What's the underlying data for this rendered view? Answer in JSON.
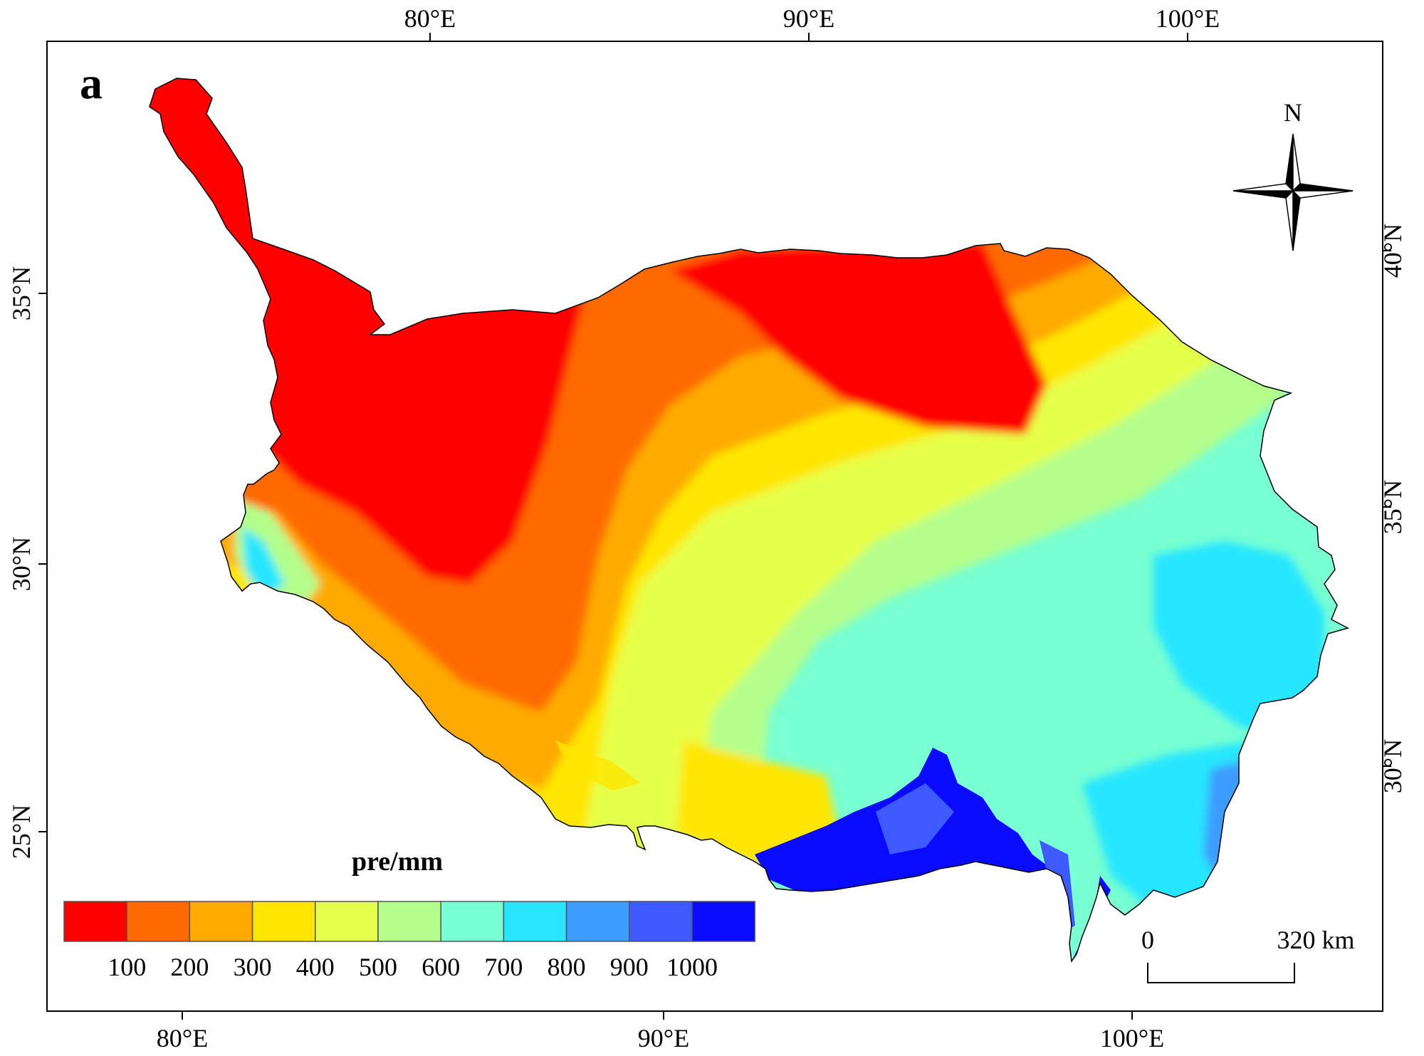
{
  "panel_label": "a",
  "axes": {
    "top_ticks": [
      "80°E",
      "90°E",
      "100°E"
    ],
    "bottom_ticks": [
      "80°E",
      "90°E",
      "100°E"
    ],
    "left_ticks": [
      "35°N",
      "30°N",
      "25°N"
    ],
    "right_ticks": [
      "40°N",
      "35°N",
      "30°N"
    ]
  },
  "legend": {
    "title": "pre/mm",
    "colors": [
      "#ff0000",
      "#ff6a00",
      "#ffaa00",
      "#ffe600",
      "#e6ff4a",
      "#b4ff8c",
      "#78ffd2",
      "#28e6ff",
      "#3c9cff",
      "#3c5aff",
      "#0a0aff"
    ],
    "labels": [
      "100",
      "200",
      "300",
      "400",
      "500",
      "600",
      "700",
      "800",
      "900",
      "1000"
    ]
  },
  "compass": {
    "label": "N",
    "icon": "north-arrow-icon"
  },
  "scale_bar": {
    "start_label": "0",
    "end_label": "320 km"
  }
}
